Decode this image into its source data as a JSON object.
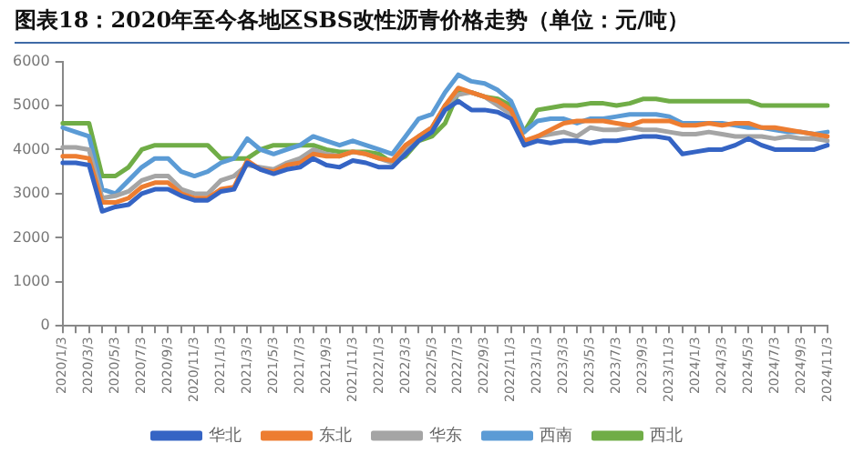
{
  "chart_data": {
    "type": "line",
    "title": "图表18：2020年至今各地区SBS改性沥青价格走势（单位：元/吨）",
    "categories": [
      "2020/1/3",
      null,
      "2020/3/3",
      null,
      "2020/5/3",
      null,
      "2020/7/3",
      null,
      "2020/9/3",
      null,
      "2020/11/3",
      null,
      "2021/1/3",
      null,
      "2021/3/3",
      null,
      "2021/5/3",
      null,
      "2021/7/3",
      null,
      "2021/9/3",
      null,
      "2021/11/3",
      null,
      "2022/1/3",
      null,
      "2022/3/3",
      null,
      "2022/5/3",
      null,
      "2022/7/3",
      null,
      "2022/9/3",
      null,
      "2022/11/3",
      null,
      "2023/1/3",
      null,
      "2023/3/3",
      null,
      "2023/5/3",
      null,
      "2023/7/3",
      null,
      "2023/9/3",
      null,
      "2023/11/3",
      null,
      "2024/1/3",
      null,
      "2024/3/3",
      null,
      "2024/5/3",
      null,
      "2024/7/3",
      null,
      "2024/9/3",
      null,
      "2024/11/3"
    ],
    "series": [
      {
        "name": "华北",
        "color": "#3564c4",
        "values": [
          3700,
          3700,
          3650,
          2600,
          2700,
          2750,
          3000,
          3100,
          3100,
          2950,
          2850,
          2850,
          3050,
          3100,
          3700,
          3550,
          3450,
          3550,
          3600,
          3800,
          3650,
          3600,
          3750,
          3700,
          3600,
          3600,
          3900,
          4200,
          4400,
          4900,
          5100,
          4900,
          4900,
          4850,
          4700,
          4100,
          4200,
          4150,
          4200,
          4200,
          4150,
          4200,
          4200,
          4250,
          4300,
          4300,
          4250,
          3900,
          3950,
          4000,
          4000,
          4100,
          4250,
          4100,
          4000,
          4000,
          4000,
          4000,
          4100
        ]
      },
      {
        "name": "东北",
        "color": "#ed7d31",
        "values": [
          3850,
          3850,
          3800,
          2800,
          2800,
          2900,
          3150,
          3250,
          3250,
          3000,
          2900,
          2900,
          3100,
          3150,
          3750,
          3550,
          3500,
          3650,
          3700,
          3900,
          3850,
          3850,
          3950,
          3900,
          3800,
          3750,
          4100,
          4300,
          4500,
          5000,
          5400,
          5300,
          5200,
          5100,
          4900,
          4200,
          4300,
          4450,
          4600,
          4650,
          4650,
          4650,
          4600,
          4550,
          4650,
          4650,
          4650,
          4550,
          4550,
          4600,
          4550,
          4600,
          4600,
          4500,
          4500,
          4450,
          4400,
          4350,
          4300
        ]
      },
      {
        "name": "华东",
        "color": "#a5a5a5",
        "values": [
          4050,
          4050,
          4000,
          2900,
          2950,
          3050,
          3300,
          3400,
          3400,
          3100,
          3000,
          3000,
          3300,
          3400,
          3650,
          3600,
          3550,
          3700,
          3800,
          4000,
          3900,
          3850,
          3950,
          3900,
          3800,
          3700,
          4000,
          4300,
          4500,
          5000,
          5250,
          5300,
          5200,
          5000,
          4800,
          4100,
          4300,
          4350,
          4400,
          4300,
          4500,
          4450,
          4450,
          4500,
          4450,
          4450,
          4400,
          4350,
          4350,
          4400,
          4350,
          4300,
          4300,
          4300,
          4250,
          4300,
          4250,
          4250,
          4200
        ]
      },
      {
        "name": "西南",
        "color": "#5b9bd5",
        "values": [
          4500,
          4400,
          4300,
          3100,
          3000,
          3300,
          3600,
          3800,
          3800,
          3500,
          3400,
          3500,
          3700,
          3800,
          4250,
          4000,
          3900,
          4000,
          4100,
          4300,
          4200,
          4100,
          4200,
          4100,
          4000,
          3900,
          4300,
          4700,
          4800,
          5300,
          5700,
          5550,
          5500,
          5350,
          5100,
          4400,
          4650,
          4700,
          4700,
          4600,
          4700,
          4700,
          4750,
          4800,
          4800,
          4800,
          4750,
          4600,
          4600,
          4600,
          4600,
          4550,
          4500,
          4500,
          4450,
          4400,
          4400,
          4350,
          4400
        ]
      },
      {
        "name": "西北",
        "color": "#70ad47",
        "values": [
          4600,
          4600,
          4600,
          3400,
          3400,
          3600,
          4000,
          4100,
          4100,
          4100,
          4100,
          4100,
          3800,
          3800,
          3800,
          4000,
          4100,
          4100,
          4100,
          4100,
          4000,
          3950,
          3950,
          3950,
          3900,
          3700,
          3850,
          4200,
          4300,
          4600,
          5300,
          5300,
          5200,
          5150,
          5000,
          4400,
          4900,
          4950,
          5000,
          5000,
          5050,
          5050,
          5000,
          5050,
          5150,
          5150,
          5100,
          5100,
          5100,
          5100,
          5100,
          5100,
          5100,
          5000,
          5000,
          5000,
          5000,
          5000,
          5000
        ]
      }
    ],
    "ylim": [
      0,
      6000
    ],
    "yticks": [
      0,
      1000,
      2000,
      3000,
      4000,
      5000,
      6000
    ],
    "grid": false,
    "legend": "bottom",
    "marker": "none",
    "line_style": "solid"
  }
}
